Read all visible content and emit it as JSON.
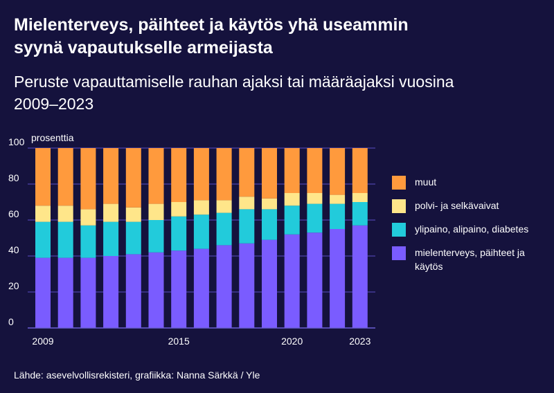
{
  "title": "Mielenterveys,  päihteet ja käytös yhä useammin syynä vapautukselle armeijasta",
  "subtitle": "Peruste vapauttamiselle rauhan ajaksi tai määräajaksi vuosina 2009–2023",
  "source": "Lähde: asevelvollisrekisteri, grafiikka: Nanna Särkkä / Yle",
  "colors": {
    "background": "#15123d",
    "grid": "#5b4fc7",
    "axis": "#6c60d8",
    "mielenterveys": "#7a5cff",
    "ylipaino": "#22cbdb",
    "polvi": "#ffe68a",
    "muut": "#ff9a3d"
  },
  "chart_data": {
    "type": "bar",
    "stacked": true,
    "ylabel": "prosenttia",
    "ylim": [
      0,
      100
    ],
    "yticks": [
      0,
      20,
      40,
      60,
      80,
      100
    ],
    "x": [
      2009,
      2010,
      2011,
      2012,
      2013,
      2014,
      2015,
      2016,
      2017,
      2018,
      2019,
      2020,
      2021,
      2022,
      2023
    ],
    "xtick_labels": [
      "2009",
      "2015",
      "2020",
      "2023"
    ],
    "legend_position": "right",
    "series": [
      {
        "name": "mielenterveys, päihteet ja käytös",
        "key": "mielenterveys",
        "values": [
          39,
          39,
          39,
          40,
          41,
          42,
          43,
          44,
          46,
          47,
          49,
          52,
          53,
          55,
          57
        ]
      },
      {
        "name": "ylipaino, alipaino, diabetes",
        "key": "ylipaino",
        "values": [
          20,
          20,
          18,
          19,
          18,
          18,
          19,
          19,
          18,
          19,
          17,
          16,
          16,
          14,
          13
        ]
      },
      {
        "name": "polvi- ja selkävaivat",
        "key": "polvi",
        "values": [
          9,
          9,
          9,
          10,
          8,
          9,
          8,
          8,
          7,
          7,
          6,
          7,
          6,
          5,
          5
        ]
      },
      {
        "name": "muut",
        "key": "muut",
        "values": [
          32,
          32,
          34,
          31,
          33,
          31,
          30,
          29,
          29,
          27,
          28,
          25,
          25,
          26,
          25
        ]
      }
    ]
  }
}
